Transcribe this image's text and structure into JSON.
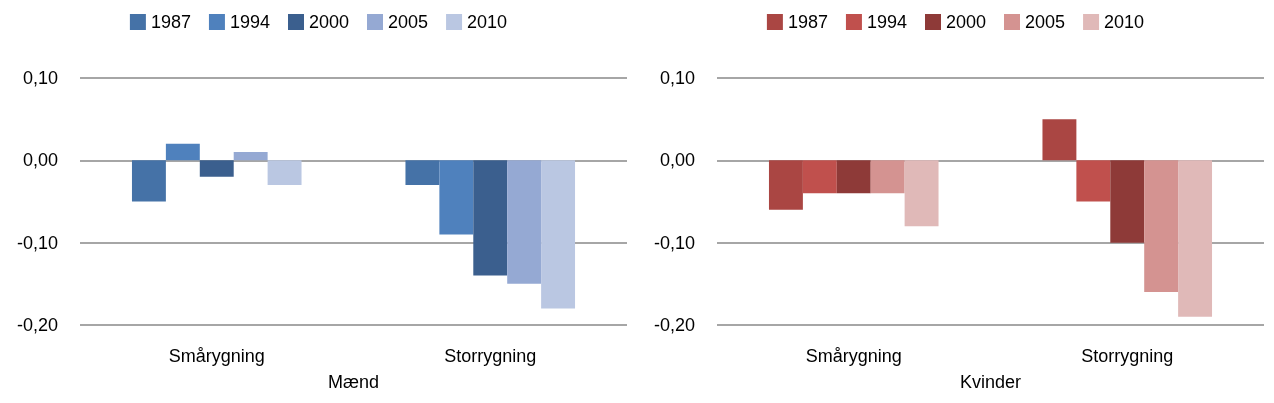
{
  "chart_data": [
    {
      "type": "bar",
      "xlabel": "Mænd",
      "categories": [
        "Smårygning",
        "Storrygning"
      ],
      "ylim": [
        -0.2,
        0.1
      ],
      "yticks": [
        {
          "value": -0.2,
          "label": "-0,20"
        },
        {
          "value": -0.1,
          "label": "-0,10"
        },
        {
          "value": 0,
          "label": "0,00"
        },
        {
          "value": 0.1,
          "label": "0,10"
        }
      ],
      "grid": "y",
      "legend": "top",
      "series": [
        {
          "name": "1987",
          "color": "#4572a7",
          "values": [
            -0.05,
            -0.03
          ]
        },
        {
          "name": "1994",
          "color": "#4f81bd",
          "values": [
            0.02,
            -0.09
          ]
        },
        {
          "name": "2000",
          "color": "#3b5f8e",
          "values": [
            -0.02,
            -0.14
          ]
        },
        {
          "name": "2005",
          "color": "#95a9d3",
          "values": [
            0.01,
            -0.15
          ]
        },
        {
          "name": "2010",
          "color": "#bac7e2",
          "values": [
            -0.03,
            -0.18
          ]
        }
      ]
    },
    {
      "type": "bar",
      "xlabel": "Kvinder",
      "categories": [
        "Smårygning",
        "Storrygning"
      ],
      "ylim": [
        -0.2,
        0.1
      ],
      "yticks": [
        {
          "value": -0.2,
          "label": "-0,20"
        },
        {
          "value": -0.1,
          "label": "-0,10"
        },
        {
          "value": 0,
          "label": "0,00"
        },
        {
          "value": 0.1,
          "label": "0,10"
        }
      ],
      "grid": "y",
      "legend": "top",
      "series": [
        {
          "name": "1987",
          "color": "#aa4643",
          "values": [
            -0.06,
            0.05
          ]
        },
        {
          "name": "1994",
          "color": "#c0504d",
          "values": [
            -0.04,
            -0.05
          ]
        },
        {
          "name": "2000",
          "color": "#8e3a38",
          "values": [
            -0.04,
            -0.1
          ]
        },
        {
          "name": "2005",
          "color": "#d49391",
          "values": [
            -0.04,
            -0.16
          ]
        },
        {
          "name": "2010",
          "color": "#e0b9b8",
          "values": [
            -0.08,
            -0.19
          ]
        }
      ]
    }
  ]
}
